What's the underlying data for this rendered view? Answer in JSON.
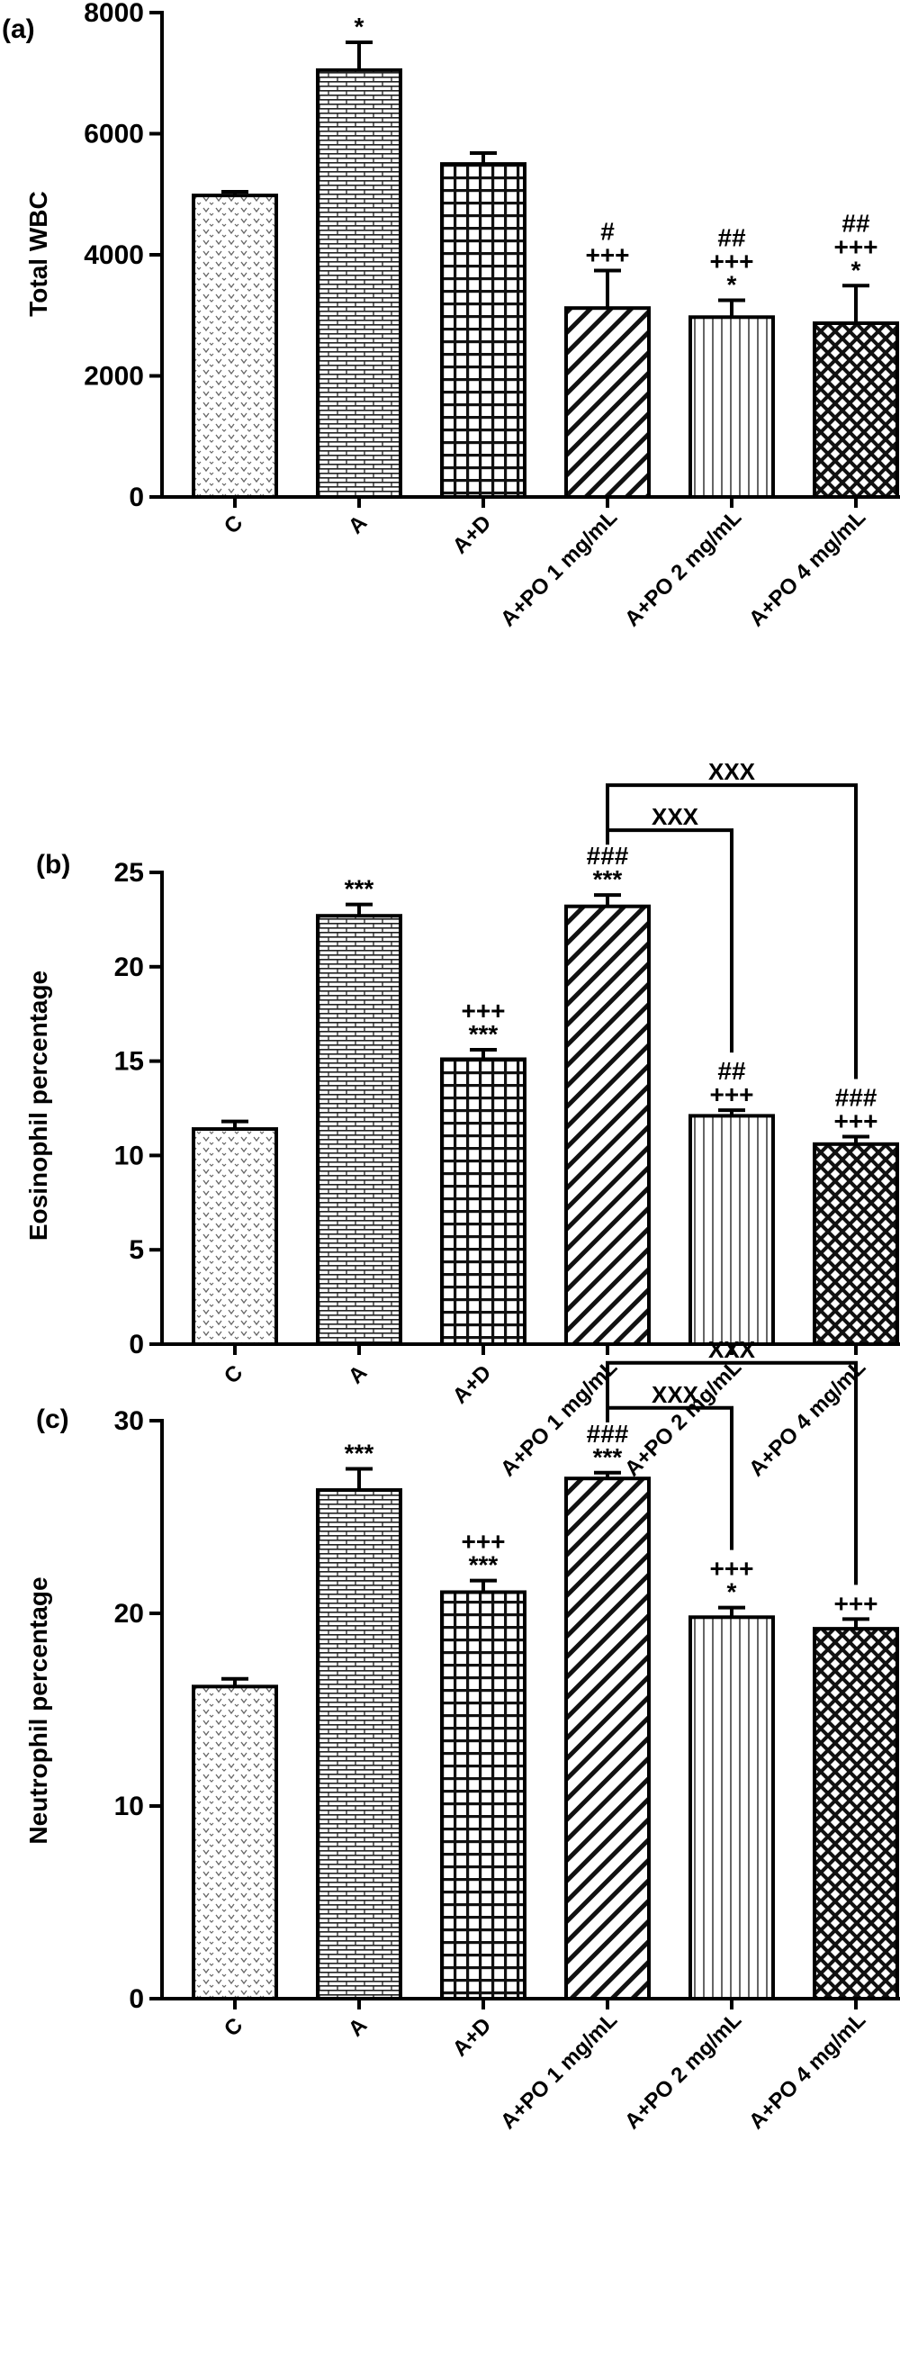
{
  "chart_data": [
    {
      "type": "bar",
      "panel": "(a)",
      "ylabel": "Total WBC",
      "ylim": [
        0,
        8000
      ],
      "yticks": [
        0,
        2000,
        4000,
        6000,
        8000
      ],
      "categories": [
        "C",
        "A",
        "A+D",
        "A+PO 1 mg/mL",
        "A+PO 2 mg/mL",
        "A+PO 4 mg/mL"
      ],
      "values": [
        4980,
        7050,
        5500,
        3120,
        2970,
        2870
      ],
      "errors": [
        60,
        460,
        180,
        620,
        280,
        620
      ],
      "patterns": [
        "dots",
        "brick",
        "grid",
        "diag",
        "vlines",
        "cross"
      ],
      "annotations": [
        [],
        [
          "*"
        ],
        [],
        [
          "#",
          "+++"
        ],
        [
          "##",
          "+++",
          "*"
        ],
        [
          "##",
          "+++",
          "*"
        ]
      ],
      "brackets": []
    },
    {
      "type": "bar",
      "panel": "(b)",
      "ylabel": "Eosinophil percentage",
      "ylim": [
        0,
        25
      ],
      "yticks": [
        0,
        5,
        10,
        15,
        20,
        25
      ],
      "categories": [
        "C",
        "A",
        "A+D",
        "A+PO 1 mg/mL",
        "A+PO 2 mg/mL",
        "A+PO 4 mg/mL"
      ],
      "values": [
        11.4,
        22.7,
        15.1,
        23.2,
        12.1,
        10.6
      ],
      "errors": [
        0.4,
        0.6,
        0.5,
        0.6,
        0.3,
        0.4
      ],
      "patterns": [
        "dots",
        "brick",
        "grid",
        "diag",
        "vlines",
        "cross"
      ],
      "annotations": [
        [],
        [
          "***"
        ],
        [
          "+++",
          "***"
        ],
        [
          "###",
          "***"
        ],
        [
          "##",
          "+++"
        ],
        [
          "###",
          "+++"
        ]
      ],
      "brackets": [
        {
          "from": 3,
          "to": 4,
          "label": "XXX"
        },
        {
          "from": 3,
          "to": 5,
          "label": "XXX"
        }
      ]
    },
    {
      "type": "bar",
      "panel": "(c)",
      "ylabel": "Neutrophil percentage",
      "ylim": [
        0,
        30
      ],
      "yticks": [
        0,
        10,
        20,
        30
      ],
      "categories": [
        "C",
        "A",
        "A+D",
        "A+PO 1 mg/mL",
        "A+PO 2 mg/mL",
        "A+PO 4 mg/mL"
      ],
      "values": [
        16.2,
        26.4,
        21.1,
        27.0,
        19.8,
        19.2
      ],
      "errors": [
        0.4,
        1.1,
        0.6,
        0.3,
        0.5,
        0.5
      ],
      "patterns": [
        "dots",
        "brick",
        "grid",
        "diag",
        "vlines",
        "cross"
      ],
      "annotations": [
        [],
        [
          "***"
        ],
        [
          "+++",
          "***"
        ],
        [
          "###",
          "***"
        ],
        [
          "+++",
          "*"
        ],
        [
          "+++"
        ]
      ],
      "brackets": [
        {
          "from": 3,
          "to": 4,
          "label": "XXX"
        },
        {
          "from": 3,
          "to": 5,
          "label": "XXX"
        }
      ]
    }
  ]
}
